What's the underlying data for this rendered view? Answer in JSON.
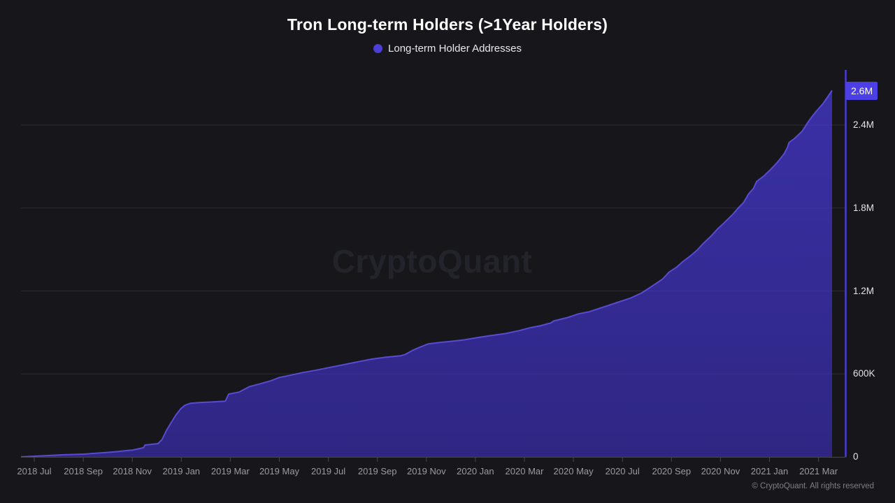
{
  "chart": {
    "title": "Tron Long-term Holders (>1Year Holders)",
    "legend": {
      "label": "Long-term Holder Addresses"
    },
    "last_value_badge": "2.6M"
  },
  "watermark": "CryptoQuant",
  "footer": {
    "copyright": "© CryptoQuant. All rights reserved"
  },
  "colors": {
    "background": "#17171b",
    "accent": "#4c3fe6",
    "legend_dot": "#4b3fd6",
    "area_fill_top": "#3a30a6",
    "area_fill_bottom": "#2f2683",
    "line": "#584bd2",
    "axis_line": "#4a3cd4",
    "grid": "#232329",
    "grid_over_area": "rgba(255,255,255,0.045)",
    "baseline": "#46464c",
    "x_label": "#9a9aa2",
    "y_label": "#e2e2e6",
    "title": "#ffffff",
    "watermark": "#23232b",
    "footer": "#7e7e86"
  },
  "chart_data": {
    "type": "area",
    "title": "Tron Long-term Holders (>1Year Holders)",
    "x_range_labels": [
      "2018 Jun",
      "2021 Apr"
    ],
    "y_axis": {
      "min": 0,
      "max": 2800000,
      "grid_step": 600000,
      "grid": true
    },
    "legend_position": "top-center",
    "x_ticks": [
      "2018 Jul",
      "2018 Sep",
      "2018 Nov",
      "2019 Jan",
      "2019 Mar",
      "2019 May",
      "2019 Jul",
      "2019 Sep",
      "2019 Nov",
      "2020 Jan",
      "2020 Mar",
      "2020 May",
      "2020 Jul",
      "2020 Sep",
      "2020 Nov",
      "2021 Jan",
      "2021 Mar"
    ],
    "y_ticks": [
      {
        "value": 0,
        "label": "0"
      },
      {
        "value": 600000,
        "label": "600K"
      },
      {
        "value": 1200000,
        "label": "1.2M"
      },
      {
        "value": 1800000,
        "label": "1.8M"
      },
      {
        "value": 2400000,
        "label": "2.4M"
      }
    ],
    "last_value": 2650000,
    "series": [
      {
        "name": "Long-term Holder Addresses",
        "color": "#4b3fd6",
        "points": [
          [
            0.0,
            0
          ],
          [
            0.017,
            5000
          ],
          [
            0.052,
            15000
          ],
          [
            0.078,
            20000
          ],
          [
            0.112,
            35000
          ],
          [
            0.138,
            50000
          ],
          [
            0.151,
            66000
          ],
          [
            0.153,
            86000
          ],
          [
            0.169,
            96000
          ],
          [
            0.174,
            126000
          ],
          [
            0.179,
            187000
          ],
          [
            0.185,
            247000
          ],
          [
            0.191,
            303000
          ],
          [
            0.197,
            348000
          ],
          [
            0.202,
            373000
          ],
          [
            0.209,
            388000
          ],
          [
            0.22,
            393000
          ],
          [
            0.237,
            398000
          ],
          [
            0.252,
            403000
          ],
          [
            0.256,
            454000
          ],
          [
            0.269,
            469000
          ],
          [
            0.282,
            509000
          ],
          [
            0.295,
            529000
          ],
          [
            0.308,
            550000
          ],
          [
            0.319,
            575000
          ],
          [
            0.332,
            590000
          ],
          [
            0.347,
            610000
          ],
          [
            0.362,
            625000
          ],
          [
            0.379,
            645000
          ],
          [
            0.397,
            666000
          ],
          [
            0.414,
            686000
          ],
          [
            0.431,
            706000
          ],
          [
            0.45,
            721000
          ],
          [
            0.468,
            731000
          ],
          [
            0.474,
            741000
          ],
          [
            0.483,
            771000
          ],
          [
            0.491,
            792000
          ],
          [
            0.502,
            817000
          ],
          [
            0.516,
            827000
          ],
          [
            0.533,
            837000
          ],
          [
            0.547,
            847000
          ],
          [
            0.562,
            862000
          ],
          [
            0.579,
            877000
          ],
          [
            0.597,
            892000
          ],
          [
            0.614,
            913000
          ],
          [
            0.627,
            933000
          ],
          [
            0.64,
            948000
          ],
          [
            0.653,
            968000
          ],
          [
            0.657,
            983000
          ],
          [
            0.674,
            1008000
          ],
          [
            0.687,
            1034000
          ],
          [
            0.7,
            1049000
          ],
          [
            0.713,
            1074000
          ],
          [
            0.726,
            1099000
          ],
          [
            0.739,
            1124000
          ],
          [
            0.752,
            1150000
          ],
          [
            0.765,
            1185000
          ],
          [
            0.773,
            1215000
          ],
          [
            0.782,
            1250000
          ],
          [
            0.791,
            1286000
          ],
          [
            0.799,
            1336000
          ],
          [
            0.808,
            1371000
          ],
          [
            0.816,
            1412000
          ],
          [
            0.825,
            1452000
          ],
          [
            0.834,
            1497000
          ],
          [
            0.842,
            1548000
          ],
          [
            0.851,
            1598000
          ],
          [
            0.859,
            1649000
          ],
          [
            0.868,
            1699000
          ],
          [
            0.877,
            1750000
          ],
          [
            0.885,
            1805000
          ],
          [
            0.891,
            1840000
          ],
          [
            0.897,
            1901000
          ],
          [
            0.903,
            1941000
          ],
          [
            0.907,
            1992000
          ],
          [
            0.916,
            2032000
          ],
          [
            0.924,
            2077000
          ],
          [
            0.933,
            2133000
          ],
          [
            0.941,
            2193000
          ],
          [
            0.945,
            2239000
          ],
          [
            0.947,
            2274000
          ],
          [
            0.954,
            2304000
          ],
          [
            0.963,
            2355000
          ],
          [
            0.972,
            2435000
          ],
          [
            0.98,
            2496000
          ],
          [
            0.989,
            2556000
          ],
          [
            0.995,
            2607000
          ],
          [
            1.0,
            2650000
          ]
        ]
      }
    ]
  }
}
